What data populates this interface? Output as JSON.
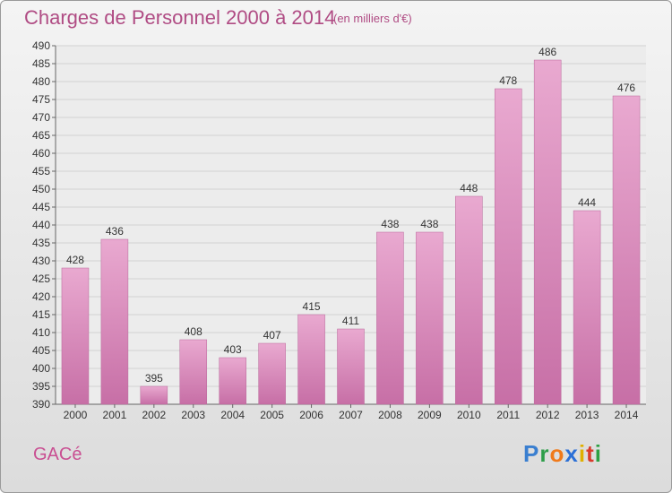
{
  "title": "Charges de Personnel 2000 à 2014",
  "subtitle": "(en milliers d'€)",
  "commune": "GACé",
  "logo": {
    "letters": [
      "P",
      "r",
      "o",
      "x",
      "i",
      "t",
      "i"
    ],
    "colors": [
      "#3a7fd0",
      "#2e9e4a",
      "#f07a1a",
      "#2b6fd6",
      "#e0b000",
      "#d93a2b",
      "#2ea043"
    ]
  },
  "colors": {
    "bar": "#c76fa6",
    "bar_light": "#e9a9d0",
    "title": "#b04c84"
  },
  "chart_data": {
    "type": "bar",
    "categories": [
      "2000",
      "2001",
      "2002",
      "2003",
      "2004",
      "2005",
      "2006",
      "2007",
      "2008",
      "2009",
      "2010",
      "2011",
      "2012",
      "2013",
      "2014"
    ],
    "values": [
      428,
      436,
      395,
      408,
      403,
      407,
      415,
      411,
      438,
      438,
      448,
      478,
      486,
      444,
      476
    ],
    "ylim": [
      390,
      490
    ],
    "yticks": [
      390,
      395,
      400,
      405,
      410,
      415,
      420,
      425,
      430,
      435,
      440,
      445,
      450,
      455,
      460,
      465,
      470,
      475,
      480,
      485,
      490
    ],
    "grid": true,
    "xlabel": "",
    "ylabel": ""
  }
}
